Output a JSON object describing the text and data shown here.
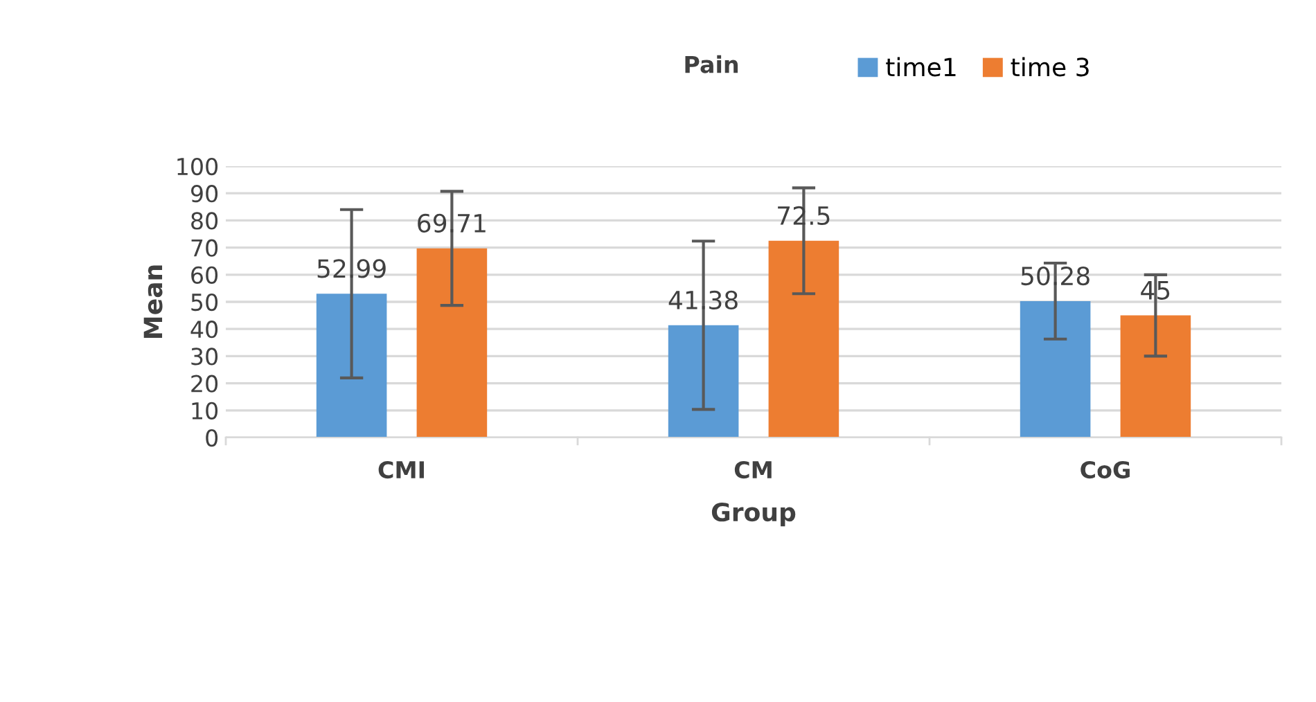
{
  "chart_data": {
    "type": "bar",
    "title": "Pain",
    "xlabel": "Group",
    "ylabel": "Mean",
    "categories": [
      "CMI",
      "CM",
      "CoG"
    ],
    "series": [
      {
        "name": "time1",
        "color": "#5b9bd5",
        "values": [
          52.99,
          41.38,
          50.28
        ],
        "errors": [
          31,
          31,
          14
        ]
      },
      {
        "name": "time 3",
        "color": "#ed7d31",
        "values": [
          69.71,
          72.5,
          45
        ],
        "errors": [
          21,
          19.5,
          15
        ]
      }
    ],
    "ylim": [
      0,
      100
    ],
    "yticks": [
      0,
      10,
      20,
      30,
      40,
      50,
      60,
      70,
      80,
      90,
      100
    ],
    "grid": "y",
    "legend": "top right",
    "data_labels": true
  }
}
